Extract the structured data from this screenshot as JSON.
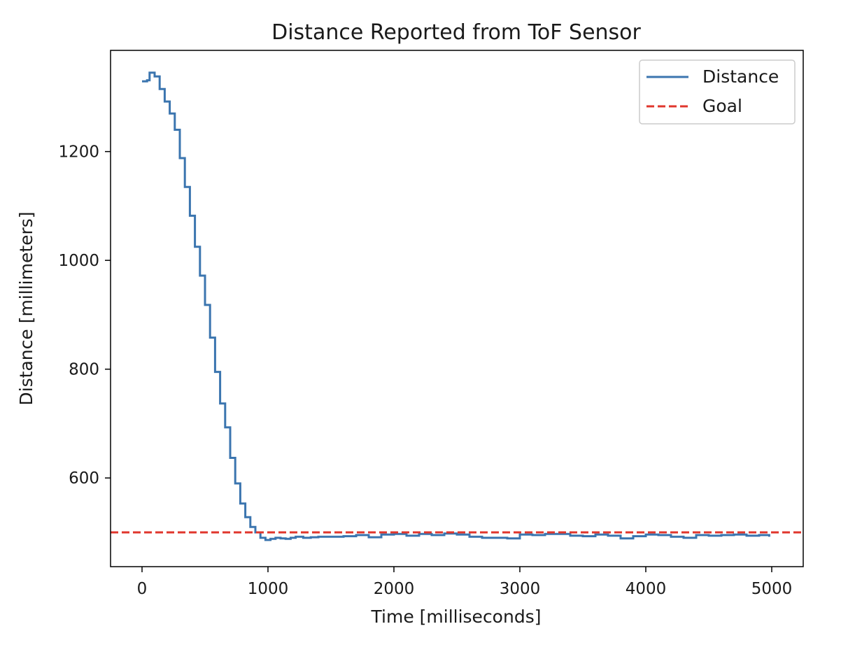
{
  "chart_data": {
    "type": "line",
    "title": "Distance Reported from ToF Sensor",
    "xlabel": "Time [milliseconds]",
    "ylabel": "Distance [millimeters]",
    "xlim": [
      -250,
      5250
    ],
    "ylim": [
      437,
      1386
    ],
    "xticks": [
      0,
      1000,
      2000,
      3000,
      4000,
      5000
    ],
    "yticks": [
      600,
      800,
      1000,
      1200
    ],
    "grid": false,
    "legend": "top-right",
    "series": [
      {
        "name": "Distance",
        "style": "step",
        "color": "#3b75af",
        "x": [
          0,
          40,
          60,
          100,
          140,
          180,
          220,
          260,
          300,
          340,
          380,
          420,
          460,
          500,
          540,
          580,
          620,
          660,
          700,
          740,
          780,
          820,
          860,
          900,
          940,
          980,
          1020,
          1060,
          1100,
          1140,
          1180,
          1220,
          1280,
          1340,
          1400,
          1500,
          1600,
          1700,
          1800,
          1900,
          2000,
          2100,
          2200,
          2300,
          2400,
          2500,
          2600,
          2700,
          2800,
          2900,
          3000,
          3100,
          3200,
          3300,
          3400,
          3500,
          3600,
          3700,
          3800,
          3900,
          4000,
          4100,
          4200,
          4300,
          4400,
          4500,
          4600,
          4700,
          4800,
          4900,
          4980
        ],
        "y": [
          1329,
          1331,
          1345,
          1338,
          1315,
          1292,
          1270,
          1240,
          1188,
          1135,
          1082,
          1025,
          972,
          918,
          858,
          795,
          737,
          693,
          637,
          590,
          553,
          528,
          510,
          500,
          490,
          486,
          488,
          490,
          489,
          488,
          490,
          492,
          490,
          491,
          492,
          492,
          493,
          495,
          491,
          496,
          497,
          494,
          497,
          495,
          498,
          496,
          492,
          490,
          490,
          489,
          496,
          495,
          497,
          497,
          494,
          493,
          496,
          494,
          489,
          493,
          496,
          495,
          492,
          490,
          495,
          494,
          495,
          496,
          494,
          495,
          492
        ]
      },
      {
        "name": "Goal",
        "style": "dashed",
        "color": "#e0362c",
        "y": 500
      }
    ]
  }
}
